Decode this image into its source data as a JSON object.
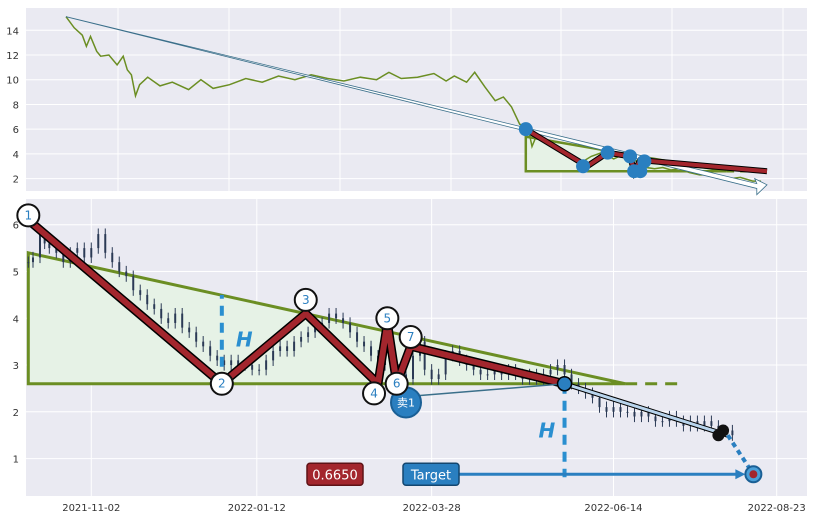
{
  "colors": {
    "background": "#eaeaf2",
    "grid": "#ffffff",
    "price_line": "#6b8e23",
    "pattern_stroke": "#a3262d",
    "triangle_fill": "#e6f2e6",
    "triangle_edge": "#6b8e23",
    "marker_blue": "#2a7fc0",
    "height_marker": "#2a8fd0",
    "price_badge_bg": "#a3262d",
    "target_badge_bg": "#2a7fc0"
  },
  "chart_data": [
    {
      "type": "line",
      "panel": "overview",
      "ylim": [
        1,
        15.8
      ],
      "yticks": [
        "2",
        "4",
        "6",
        "8",
        "10",
        "12",
        "14"
      ],
      "ytick_values": [
        2,
        4,
        6,
        8,
        10,
        12,
        14
      ],
      "x_range_days": [
        0,
        343
      ],
      "series": [
        {
          "values": [
            [
              0,
              15.1
            ],
            [
              4,
              14.2
            ],
            [
              8,
              13.6
            ],
            [
              10,
              12.7
            ],
            [
              12,
              13.5
            ],
            [
              15,
              12.3
            ],
            [
              17,
              11.9
            ],
            [
              21,
              12.0
            ],
            [
              25,
              11.2
            ],
            [
              28,
              11.9
            ],
            [
              30,
              10.8
            ],
            [
              32,
              10.4
            ],
            [
              34,
              8.7
            ],
            [
              36,
              9.6
            ],
            [
              40,
              10.2
            ],
            [
              46,
              9.5
            ],
            [
              52,
              9.8
            ],
            [
              60,
              9.2
            ],
            [
              66,
              10.0
            ],
            [
              72,
              9.3
            ],
            [
              80,
              9.6
            ],
            [
              88,
              10.1
            ],
            [
              96,
              9.8
            ],
            [
              104,
              10.3
            ],
            [
              112,
              10.0
            ],
            [
              120,
              10.4
            ],
            [
              128,
              10.1
            ],
            [
              136,
              9.9
            ],
            [
              144,
              10.2
            ],
            [
              152,
              10.0
            ],
            [
              158,
              10.6
            ],
            [
              164,
              10.1
            ],
            [
              172,
              10.2
            ],
            [
              180,
              10.5
            ],
            [
              186,
              9.9
            ],
            [
              190,
              10.3
            ],
            [
              196,
              9.8
            ],
            [
              200,
              10.6
            ],
            [
              205,
              9.4
            ],
            [
              210,
              8.3
            ],
            [
              214,
              8.6
            ],
            [
              218,
              7.8
            ],
            [
              222,
              6.4
            ],
            [
              226,
              6.2
            ],
            [
              228,
              4.6
            ],
            [
              230,
              5.4
            ],
            [
              234,
              5.0
            ],
            [
              238,
              4.6
            ],
            [
              244,
              4.2
            ],
            [
              252,
              3.3
            ],
            [
              257,
              3.8
            ],
            [
              262,
              4.1
            ],
            [
              268,
              3.6
            ],
            [
              272,
              3.9
            ],
            [
              276,
              3.3
            ],
            [
              280,
              3.5
            ],
            [
              284,
              2.9
            ],
            [
              288,
              2.8
            ],
            [
              292,
              2.9
            ],
            [
              296,
              2.7
            ],
            [
              300,
              2.8
            ],
            [
              305,
              2.5
            ],
            [
              310,
              2.3
            ],
            [
              315,
              2.3
            ],
            [
              320,
              2.1
            ],
            [
              325,
              2.0
            ],
            [
              330,
              2.1
            ],
            [
              336,
              1.8
            ],
            [
              340,
              1.8
            ]
          ]
        }
      ],
      "trend_arrow": {
        "from": [
          0,
          15.1
        ],
        "to": [
          343,
          1.5
        ]
      },
      "pattern_path": [
        [
          225,
          6.0
        ],
        [
          255,
          3.0
        ],
        [
          265,
          4.1
        ],
        [
          276,
          3.8
        ],
        [
          278,
          2.6
        ],
        [
          281,
          3.5
        ],
        [
          343,
          2.6
        ]
      ],
      "triangle": {
        "top_left": [
          225,
          5.4
        ],
        "bottom_left": [
          225,
          2.6
        ],
        "right_end": [
          323,
          2.6
        ],
        "extension_end": [
          343,
          2.6
        ]
      },
      "markers": [
        [
          225,
          6.0
        ],
        [
          253,
          3.0
        ],
        [
          265,
          4.1
        ],
        [
          276,
          3.8
        ],
        [
          278,
          2.6
        ],
        [
          281,
          2.6
        ],
        [
          283,
          3.4
        ]
      ]
    },
    {
      "type": "candlestick",
      "panel": "detail",
      "ylim": [
        0.2,
        6.55
      ],
      "yticks": [
        "1",
        "2",
        "3",
        "4",
        "5",
        "6"
      ],
      "ytick_values": [
        1,
        2,
        3,
        4,
        5,
        6
      ],
      "xticks": [
        "2021-11-02",
        "2022-01-12",
        "2022-03-28",
        "2022-06-14",
        "2022-08-23"
      ],
      "xtick_days": [
        0,
        71,
        146,
        224,
        294
      ],
      "x_range_days": [
        -28,
        307
      ],
      "candles_close": [
        [
          -27,
          5.2
        ],
        [
          -25,
          5.3
        ],
        [
          -22,
          5.8
        ],
        [
          -20,
          5.6
        ],
        [
          -18,
          5.5
        ],
        [
          -15,
          5.4
        ],
        [
          -12,
          5.2
        ],
        [
          -9,
          5.4
        ],
        [
          -6,
          5.5
        ],
        [
          -3,
          5.3
        ],
        [
          0,
          5.5
        ],
        [
          3,
          5.8
        ],
        [
          6,
          5.4
        ],
        [
          9,
          5.2
        ],
        [
          12,
          5.0
        ],
        [
          15,
          4.9
        ],
        [
          18,
          4.6
        ],
        [
          21,
          4.5
        ],
        [
          24,
          4.3
        ],
        [
          27,
          4.2
        ],
        [
          30,
          4.0
        ],
        [
          33,
          3.9
        ],
        [
          36,
          4.1
        ],
        [
          39,
          3.8
        ],
        [
          42,
          3.7
        ],
        [
          45,
          3.5
        ],
        [
          48,
          3.4
        ],
        [
          51,
          3.2
        ],
        [
          54,
          3.1
        ],
        [
          57,
          3.0
        ],
        [
          60,
          3.1
        ],
        [
          63,
          3.0
        ],
        [
          66,
          3.0
        ],
        [
          69,
          2.9
        ],
        [
          72,
          2.9
        ],
        [
          75,
          3.1
        ],
        [
          78,
          3.3
        ],
        [
          81,
          3.4
        ],
        [
          84,
          3.3
        ],
        [
          87,
          3.5
        ],
        [
          90,
          3.6
        ],
        [
          93,
          3.7
        ],
        [
          96,
          3.8
        ],
        [
          99,
          3.9
        ],
        [
          102,
          4.1
        ],
        [
          105,
          4.0
        ],
        [
          108,
          3.9
        ],
        [
          111,
          3.7
        ],
        [
          114,
          3.5
        ],
        [
          117,
          3.4
        ],
        [
          120,
          3.2
        ],
        [
          123,
          3.1
        ],
        [
          126,
          3.0
        ],
        [
          129,
          2.9
        ],
        [
          132,
          2.8
        ],
        [
          135,
          2.7
        ],
        [
          138,
          3.2
        ],
        [
          141,
          3.5
        ],
        [
          143,
          2.9
        ],
        [
          146,
          2.7
        ],
        [
          149,
          2.8
        ],
        [
          152,
          3.2
        ],
        [
          155,
          3.3
        ],
        [
          158,
          3.1
        ],
        [
          161,
          3.0
        ],
        [
          164,
          2.9
        ],
        [
          167,
          2.8
        ],
        [
          170,
          2.8
        ],
        [
          173,
          2.9
        ],
        [
          176,
          2.8
        ],
        [
          179,
          2.9
        ],
        [
          182,
          2.8
        ],
        [
          185,
          2.7
        ],
        [
          188,
          2.8
        ],
        [
          191,
          2.7
        ],
        [
          194,
          2.8
        ],
        [
          197,
          2.9
        ],
        [
          200,
          3.0
        ],
        [
          203,
          2.8
        ],
        [
          206,
          2.6
        ],
        [
          209,
          2.5
        ],
        [
          212,
          2.4
        ],
        [
          215,
          2.3
        ],
        [
          218,
          2.1
        ],
        [
          221,
          2.0
        ],
        [
          224,
          2.1
        ],
        [
          227,
          2.0
        ],
        [
          230,
          2.0
        ],
        [
          233,
          1.9
        ],
        [
          236,
          2.0
        ],
        [
          239,
          1.9
        ],
        [
          242,
          1.8
        ],
        [
          245,
          1.8
        ],
        [
          248,
          1.9
        ],
        [
          251,
          1.8
        ],
        [
          254,
          1.7
        ],
        [
          257,
          1.8
        ],
        [
          260,
          1.7
        ],
        [
          263,
          1.8
        ],
        [
          266,
          1.7
        ],
        [
          269,
          1.6
        ],
        [
          272,
          1.6
        ],
        [
          275,
          1.5
        ]
      ],
      "pattern_path": [
        [
          -27,
          6.1
        ],
        [
          56,
          2.6
        ],
        [
          92,
          4.1
        ],
        [
          123,
          2.6
        ],
        [
          127,
          3.9
        ],
        [
          131,
          2.6
        ],
        [
          137,
          3.4
        ],
        [
          203,
          2.6
        ]
      ],
      "triangle": {
        "top_left": [
          -27,
          5.4
        ],
        "bottom_left": [
          -27,
          2.6
        ],
        "right_end": [
          229,
          2.6
        ],
        "extension_end": [
          253,
          2.6
        ]
      },
      "pivots": [
        {
          "label": "1",
          "point": [
            -27,
            6.2
          ]
        },
        {
          "label": "2",
          "point": [
            56,
            2.6
          ]
        },
        {
          "label": "3",
          "point": [
            92,
            4.35
          ]
        },
        {
          "label": "4",
          "point": [
            123,
            2.5
          ]
        },
        {
          "label": "5",
          "point": [
            127,
            4.0
          ]
        },
        {
          "label": "6",
          "point": [
            131,
            2.6
          ]
        },
        {
          "label": "7",
          "point": [
            137,
            3.6
          ]
        }
      ],
      "breakout": {
        "label": "卖1",
        "point": [
          135,
          2.2
        ],
        "connects_to": [
          203,
          2.6
        ]
      },
      "projection": {
        "from": [
          203,
          2.6
        ],
        "to": [
          273,
          1.5
        ],
        "end_points": [
          [
            271,
            1.6
          ],
          [
            269,
            1.5
          ]
        ]
      },
      "height_markers": [
        {
          "label": "H",
          "x": 56,
          "y_from": 2.6,
          "y_to": 4.5
        },
        {
          "label": "H",
          "x": 203,
          "y_from": 2.6,
          "y_to": 0.6
        }
      ],
      "target": {
        "label": "Target",
        "value": 0.665,
        "value_label": "0.6650",
        "arrow_from": 143,
        "arrow_to": 273
      },
      "target_point": [
        284,
        0.665
      ],
      "target_line_from": [
        273,
        1.5
      ]
    }
  ]
}
